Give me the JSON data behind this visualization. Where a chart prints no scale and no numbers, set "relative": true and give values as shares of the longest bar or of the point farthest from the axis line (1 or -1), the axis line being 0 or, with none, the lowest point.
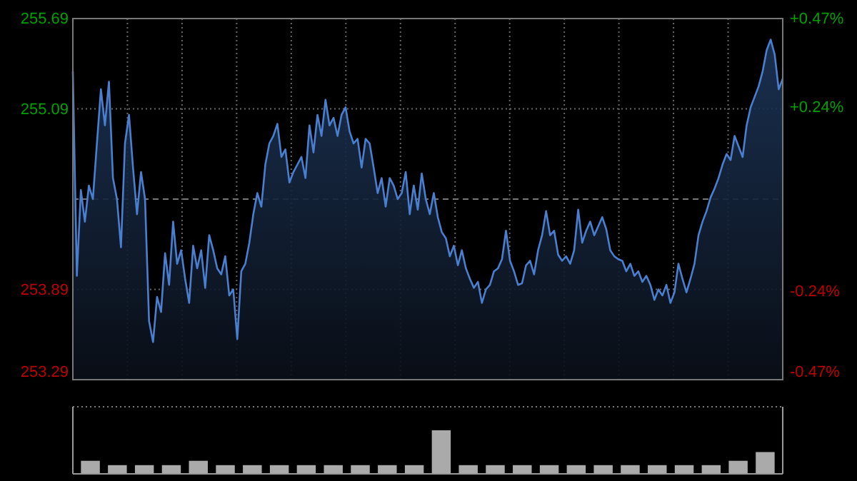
{
  "chart_data": [
    {
      "type": "area",
      "categories": [
        null,
        null,
        null,
        null,
        null,
        null,
        null,
        null,
        null,
        null,
        null,
        null,
        null,
        null,
        null,
        null,
        null,
        null,
        null,
        null,
        null,
        null,
        null,
        null,
        null,
        null,
        null,
        null,
        null,
        null,
        null,
        null,
        null,
        null,
        null,
        null,
        null,
        null,
        null,
        null,
        null,
        null,
        null,
        null,
        null,
        null,
        null,
        null,
        null,
        null,
        null,
        null,
        null,
        null,
        null,
        null,
        null,
        null,
        null,
        null,
        null,
        null,
        null,
        null,
        null,
        null,
        null,
        null,
        null,
        null,
        null,
        null,
        null,
        null,
        null,
        null,
        null,
        null,
        null,
        null,
        null,
        null,
        null,
        null,
        null,
        null,
        null,
        null,
        null,
        null,
        null,
        null,
        null,
        null,
        null,
        null,
        null,
        null,
        null,
        null,
        null,
        null,
        null,
        null,
        null,
        null,
        null,
        null,
        null,
        null,
        null,
        null,
        null,
        null,
        null,
        null,
        null,
        null,
        null,
        null,
        null,
        null,
        null,
        null,
        null,
        null,
        null,
        null,
        null,
        null,
        null,
        null,
        null,
        null,
        null,
        null,
        null,
        null,
        null,
        null,
        null,
        null,
        null,
        null,
        null,
        null,
        null,
        null,
        null,
        null,
        null,
        null,
        null,
        null,
        null,
        null,
        null,
        null,
        null,
        null,
        null,
        null,
        null,
        null,
        null,
        null,
        null,
        null,
        null,
        null,
        null,
        null,
        null,
        null,
        null,
        null,
        null,
        null
      ],
      "ylim": [
        253.29,
        255.69
      ],
      "yticks": [
        253.29,
        253.89,
        255.09,
        255.69
      ],
      "y2lim": [
        -0.47,
        0.47
      ],
      "y2ticks": [
        {
          "value": -0.47,
          "label": "-0.47%"
        },
        {
          "value": -0.24,
          "label": "-0.24%"
        },
        {
          "value": 0.24,
          "label": "+0.24%"
        },
        {
          "value": 0.47,
          "label": "+0.47%"
        }
      ],
      "grid": true,
      "ref_lines": [
        {
          "axis": "y",
          "value": 254.49,
          "line_style": "dashed",
          "color": "#777777"
        }
      ],
      "series": [
        {
          "color": "#4a7fd0",
          "values": [
            255.34,
            253.98,
            254.55,
            254.34,
            254.58,
            254.49,
            254.86,
            255.22,
            254.98,
            255.27,
            254.63,
            254.49,
            254.17,
            254.86,
            255.05,
            254.7,
            254.39,
            254.67,
            254.49,
            253.68,
            253.54,
            253.84,
            253.74,
            254.13,
            253.92,
            254.34,
            254.06,
            254.15,
            253.96,
            253.8,
            254.18,
            254.03,
            254.15,
            253.9,
            254.25,
            254.15,
            254.03,
            253.99,
            254.11,
            253.85,
            253.89,
            253.56,
            254.01,
            254.06,
            254.2,
            254.39,
            254.53,
            254.44,
            254.72,
            254.86,
            254.91,
            254.99,
            254.77,
            254.82,
            254.6,
            254.67,
            254.72,
            254.77,
            254.63,
            254.98,
            254.8,
            255.05,
            254.91,
            255.15,
            254.98,
            255.03,
            254.91,
            255.05,
            255.1,
            254.94,
            254.86,
            254.89,
            254.7,
            254.89,
            254.86,
            254.7,
            254.53,
            254.63,
            254.44,
            254.63,
            254.58,
            254.49,
            254.53,
            254.67,
            254.39,
            254.58,
            254.42,
            254.66,
            254.49,
            254.39,
            254.53,
            254.37,
            254.27,
            254.23,
            254.11,
            254.18,
            254.05,
            254.15,
            254.03,
            253.96,
            253.9,
            253.94,
            253.8,
            253.89,
            253.92,
            254.01,
            254.03,
            254.09,
            254.28,
            254.08,
            254.01,
            253.92,
            253.93,
            254.05,
            254.08,
            253.99,
            254.15,
            254.25,
            254.41,
            254.25,
            254.28,
            254.12,
            254.08,
            254.11,
            254.06,
            254.15,
            254.42,
            254.2,
            254.28,
            254.34,
            254.25,
            254.31,
            254.37,
            254.29,
            254.15,
            254.11,
            254.09,
            254.08,
            254.01,
            254.06,
            253.98,
            254.01,
            253.94,
            253.98,
            253.92,
            253.82,
            253.89,
            253.85,
            253.92,
            253.8,
            253.87,
            254.06,
            253.96,
            253.87,
            253.96,
            254.06,
            254.25,
            254.34,
            254.41,
            254.5,
            254.56,
            254.63,
            254.72,
            254.79,
            254.75,
            254.91,
            254.84,
            254.77,
            254.98,
            255.1,
            255.17,
            255.24,
            255.34,
            255.48,
            255.55,
            255.45,
            255.22,
            255.29
          ]
        }
      ]
    },
    {
      "type": "bar",
      "relative": true,
      "grid": true,
      "color": "#aaaaaa",
      "categories": [
        null,
        null,
        null,
        null,
        null,
        null,
        null,
        null,
        null,
        null,
        null,
        null,
        null,
        null,
        null,
        null,
        null,
        null,
        null,
        null,
        null,
        null,
        null,
        null,
        null,
        null
      ],
      "values": [
        0.3,
        0.2,
        0.2,
        0.2,
        0.3,
        0.2,
        0.2,
        0.2,
        0.2,
        0.2,
        0.2,
        0.2,
        0.2,
        1,
        0.2,
        0.2,
        0.2,
        0.2,
        0.2,
        0.2,
        0.2,
        0.2,
        0.2,
        0.2,
        0.3,
        0.5
      ]
    }
  ]
}
